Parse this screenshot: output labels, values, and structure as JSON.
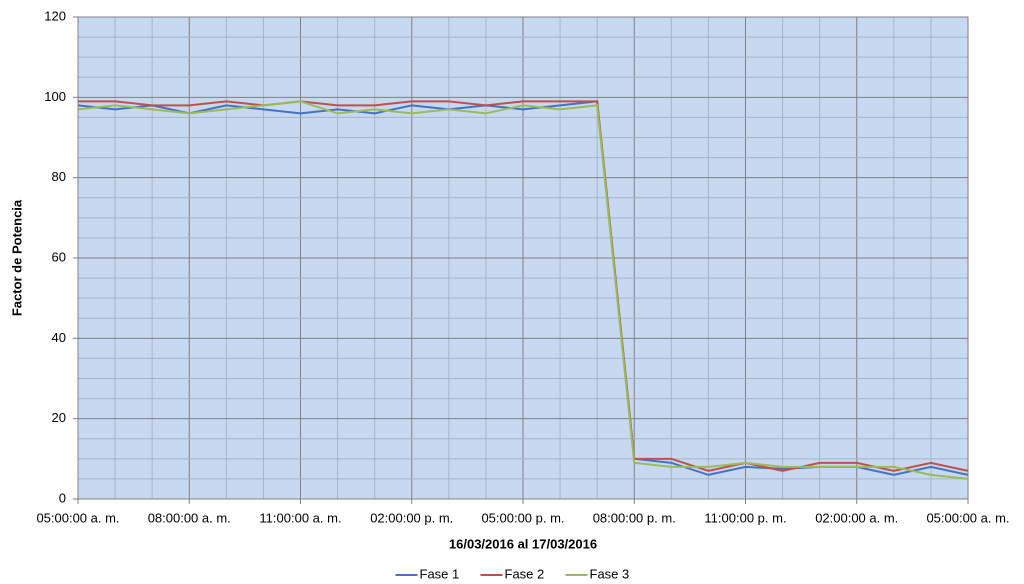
{
  "chart_data": {
    "type": "line",
    "x_label": "16/03/2016 al 17/03/2016",
    "y_label": "Factor de Potencia",
    "categories": [
      "05:00:00 a. m.",
      null,
      null,
      "08:00:00 a. m.",
      null,
      null,
      "11:00:00 a. m.",
      null,
      null,
      "02:00:00 p. m.",
      null,
      null,
      "05:00:00 p. m.",
      null,
      null,
      "08:00:00 p. m.",
      null,
      null,
      "11:00:00 p. m.",
      null,
      null,
      "02:00:00 a. m.",
      null,
      null,
      "05:00:00 a. m."
    ],
    "series": [
      {
        "name": "Fase 1",
        "color": "#4472c4",
        "values": [
          98,
          97,
          98,
          96,
          98,
          97,
          96,
          97,
          96,
          98,
          97,
          98,
          97,
          98,
          99,
          10,
          9,
          6,
          8,
          7.5,
          8,
          8,
          6,
          8,
          6
        ]
      },
      {
        "name": "Fase 2",
        "color": "#c0504d",
        "values": [
          99,
          99,
          98,
          98,
          99,
          98,
          99,
          98,
          98,
          99,
          99,
          98,
          99,
          99,
          99,
          10,
          10,
          7,
          9,
          7,
          9,
          9,
          7,
          9,
          7
        ]
      },
      {
        "name": "Fase 3",
        "color": "#9bbb59",
        "values": [
          97,
          98,
          97,
          96,
          97,
          98,
          99,
          96,
          97,
          96,
          97,
          96,
          98,
          97,
          98,
          9,
          8,
          8,
          9,
          8,
          8,
          8,
          8,
          6,
          5
        ]
      }
    ],
    "ylim": [
      0,
      120
    ],
    "yticks": [
      0,
      20,
      40,
      60,
      80,
      100,
      120
    ],
    "grid": true,
    "legend": "bottom"
  }
}
